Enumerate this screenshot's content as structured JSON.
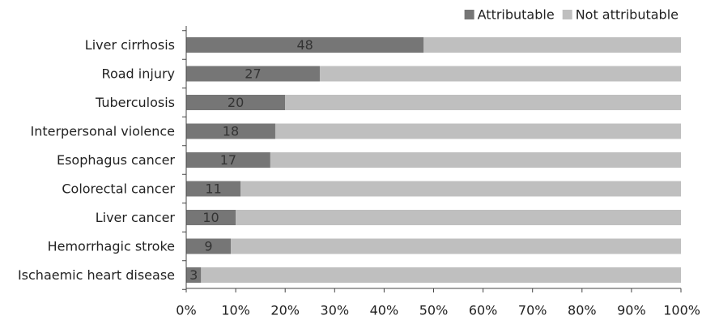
{
  "chart_data": {
    "type": "bar",
    "orientation": "horizontal",
    "stacked": true,
    "categories": [
      "Liver cirrhosis",
      "Road injury",
      "Tuberculosis",
      "Interpersonal violence",
      "Esophagus cancer",
      "Colorectal cancer",
      "Liver cancer",
      "Hemorrhagic stroke",
      "Ischaemic heart disease"
    ],
    "series": [
      {
        "name": "Attributable",
        "values": [
          48,
          27,
          20,
          18,
          17,
          11,
          10,
          9,
          3
        ],
        "color": "#767676"
      },
      {
        "name": "Not attributable",
        "values": [
          52,
          73,
          80,
          82,
          83,
          89,
          90,
          91,
          97
        ],
        "color": "#bfbfbf"
      }
    ],
    "data_labels": [
      "48",
      "27",
      "20",
      "18",
      "17",
      "11",
      "10",
      "9",
      "3"
    ],
    "xlim": [
      0,
      100
    ],
    "xticks": [
      "0%",
      "10%",
      "20%",
      "30%",
      "40%",
      "50%",
      "60%",
      "70%",
      "80%",
      "90%",
      "100%"
    ],
    "legend_position": "top-right",
    "grid": false
  }
}
